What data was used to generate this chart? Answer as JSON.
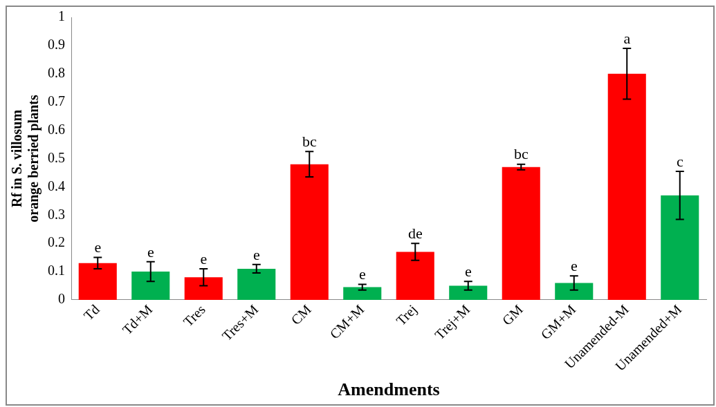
{
  "chart_data": {
    "type": "bar",
    "xlabel": "Amendments",
    "ylabel": "Rf in S. villosum orange berried plants",
    "categories": [
      "Td",
      "Td+M",
      "Tres",
      "Tres+M",
      "CM",
      "CM+M",
      "Trej",
      "Trej+M",
      "GM",
      "GM+M",
      "Unamended-M",
      "Unamended+M"
    ],
    "values": [
      0.13,
      0.1,
      0.08,
      0.11,
      0.48,
      0.045,
      0.17,
      0.05,
      0.47,
      0.06,
      0.8,
      0.37
    ],
    "colors": [
      "#ff0000",
      "#00b050",
      "#ff0000",
      "#00b050",
      "#ff0000",
      "#00b050",
      "#ff0000",
      "#00b050",
      "#ff0000",
      "#00b050",
      "#ff0000",
      "#00b050"
    ],
    "errors": [
      0.02,
      0.035,
      0.03,
      0.015,
      0.045,
      0.01,
      0.03,
      0.015,
      0.01,
      0.025,
      0.09,
      0.085
    ],
    "ylim": [
      0,
      1
    ],
    "yticks": [
      0,
      0.1,
      0.2,
      0.3,
      0.4,
      0.5,
      0.6,
      0.7,
      0.8,
      0.9,
      1
    ],
    "grid": false,
    "legend": false,
    "annotations": [
      {
        "text": "e",
        "x": "Td",
        "y": 0.15
      },
      {
        "text": "e",
        "x": "Td+M",
        "y": 0.135
      },
      {
        "text": "e",
        "x": "Tres",
        "y": 0.11
      },
      {
        "text": "e",
        "x": "Tres+M",
        "y": 0.125
      },
      {
        "text": "bc",
        "x": "CM",
        "y": 0.525
      },
      {
        "text": "e",
        "x": "CM+M",
        "y": 0.055
      },
      {
        "text": "de",
        "x": "Trej",
        "y": 0.2
      },
      {
        "text": "e",
        "x": "Trej+M",
        "y": 0.065
      },
      {
        "text": "bc",
        "x": "GM",
        "y": 0.48
      },
      {
        "text": "e",
        "x": "GM+M",
        "y": 0.085
      },
      {
        "text": "a",
        "x": "Unamended-M",
        "y": 0.89
      },
      {
        "text": "c",
        "x": "Unamended+M",
        "y": 0.455
      }
    ]
  }
}
